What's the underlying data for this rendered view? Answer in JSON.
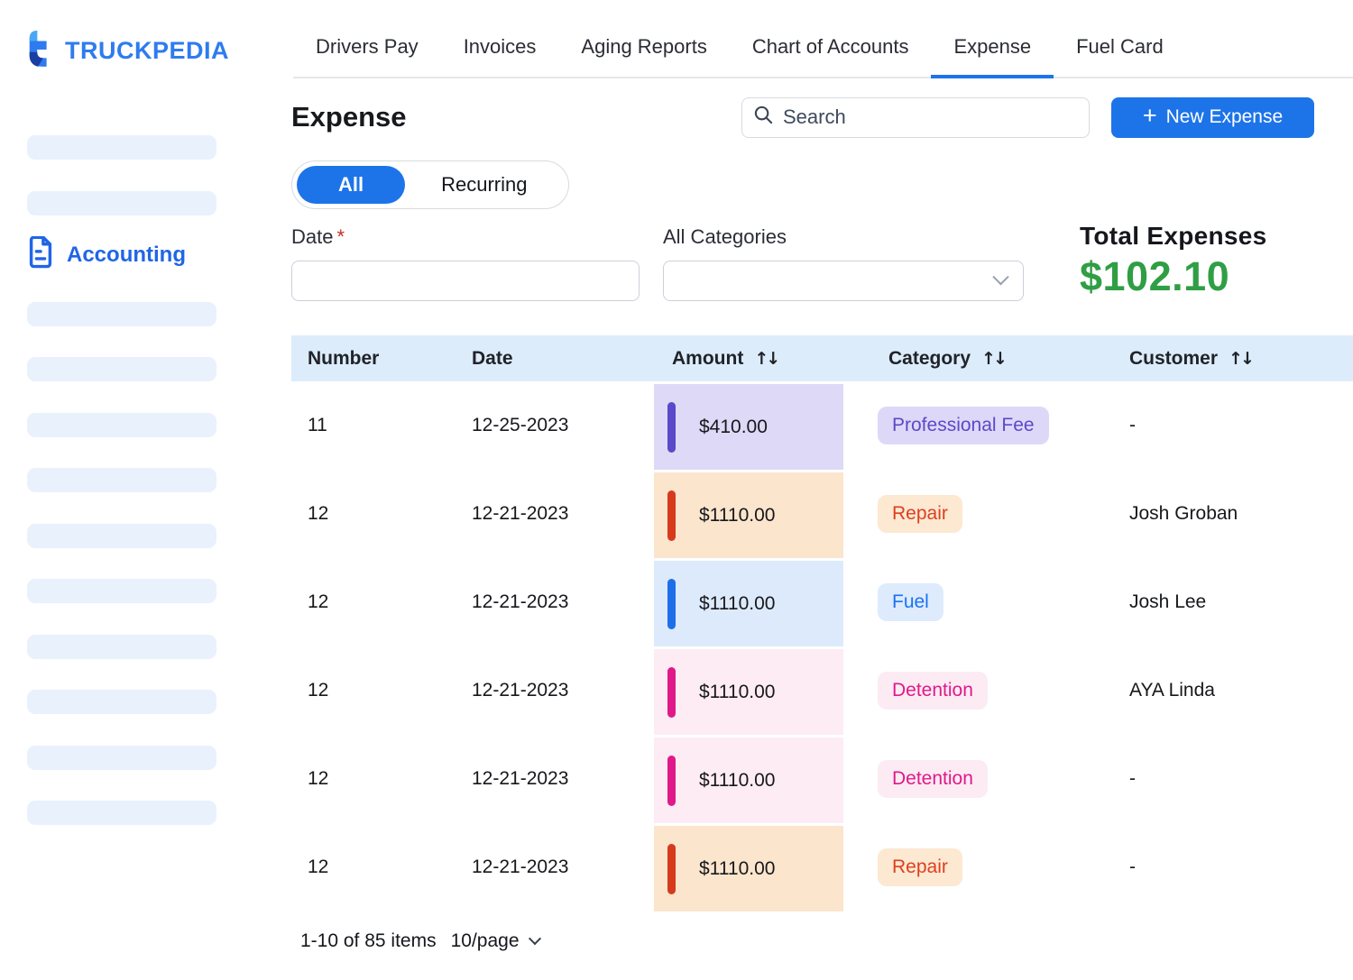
{
  "brand": {
    "name": "TRUCKPEDIA"
  },
  "nav": {
    "tabs": [
      {
        "label": "Drivers Pay",
        "active": false
      },
      {
        "label": "Invoices",
        "active": false
      },
      {
        "label": "Aging Reports",
        "active": false
      },
      {
        "label": "Chart of Accounts",
        "active": false
      },
      {
        "label": "Expense",
        "active": true
      },
      {
        "label": "Fuel Card",
        "active": false
      }
    ]
  },
  "sidebar": {
    "accounting_label": "Accounting",
    "skeleton_bar_count": 12
  },
  "page": {
    "title": "Expense"
  },
  "toolbar": {
    "search_placeholder": "Search",
    "plus_icon": "+",
    "new_expense_label": "New Expense"
  },
  "filter_toggle": {
    "options": [
      "All",
      "Recurring"
    ],
    "selected": "All"
  },
  "filters": {
    "date_label": "Date",
    "required_mark": "*",
    "date_value": "",
    "category_label": "All Categories",
    "category_value": ""
  },
  "summary": {
    "label": "Total Expenses",
    "value": "$102.10",
    "value_color": "#2f9e44"
  },
  "table": {
    "sort_icon": "↑↓",
    "columns": [
      {
        "label": "Number",
        "sortable": false
      },
      {
        "label": "Date",
        "sortable": false
      },
      {
        "label": "Amount",
        "sortable": true
      },
      {
        "label": "Category",
        "sortable": true
      },
      {
        "label": "Customer",
        "sortable": true
      }
    ],
    "rows": [
      {
        "number": "11",
        "date": "12-25-2023",
        "amount": "$410.00",
        "category": "Professional Fee",
        "customer": "-",
        "color_key": "professional_fee"
      },
      {
        "number": "12",
        "date": "12-21-2023",
        "amount": "$1110.00",
        "category": "Repair",
        "customer": "Josh Groban",
        "color_key": "repair"
      },
      {
        "number": "12",
        "date": "12-21-2023",
        "amount": "$1110.00",
        "category": "Fuel",
        "customer": "Josh Lee",
        "color_key": "fuel"
      },
      {
        "number": "12",
        "date": "12-21-2023",
        "amount": "$1110.00",
        "category": "Detention",
        "customer": "AYA Linda",
        "color_key": "detention"
      },
      {
        "number": "12",
        "date": "12-21-2023",
        "amount": "$1110.00",
        "category": "Detention",
        "customer": "-",
        "color_key": "detention"
      },
      {
        "number": "12",
        "date": "12-21-2023",
        "amount": "$1110.00",
        "category": "Repair",
        "customer": "-",
        "color_key": "repair"
      }
    ],
    "category_colors": {
      "professional_fee": {
        "bar": "#5a49c8",
        "cell_bg": "#ded9f6",
        "badge_bg": "#ded8f8",
        "badge_text": "#5b49c8"
      },
      "repair": {
        "bar": "#d63a1d",
        "cell_bg": "#fbe5cd",
        "badge_bg": "#fde8d2",
        "badge_text": "#dd3f1f"
      },
      "fuel": {
        "bar": "#1d6fe9",
        "cell_bg": "#ddeafb",
        "badge_bg": "#ddebfd",
        "badge_text": "#1a72f2"
      },
      "detention": {
        "bar": "#e0198a",
        "cell_bg": "#fdecf4",
        "badge_bg": "#fcebf3",
        "badge_text": "#e0198a"
      }
    }
  },
  "pagination": {
    "range_text": "1-10 of 85 items",
    "page_size": "10/page"
  },
  "colors": {
    "accent": "#1d74e9",
    "brand": "#2e7bf0",
    "table_header_bg": "#ddecfb"
  }
}
